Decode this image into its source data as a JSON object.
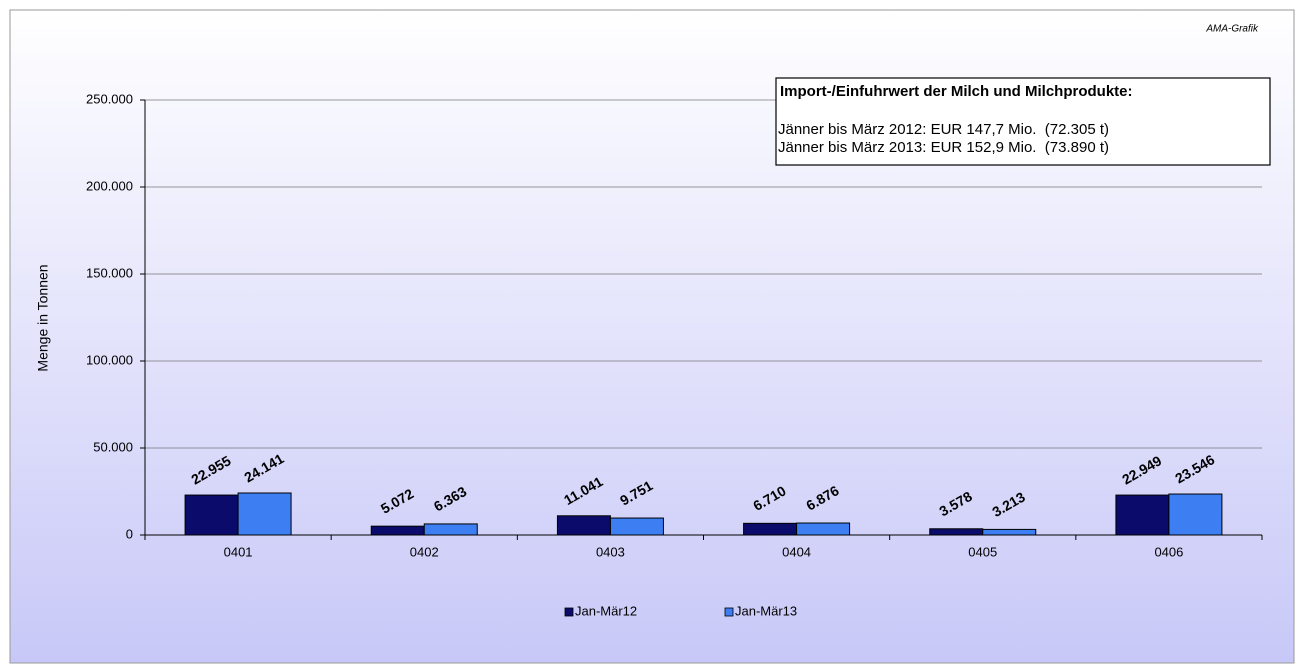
{
  "chart_data": {
    "type": "bar",
    "credit": "AMA-Grafik",
    "y_label": "Menge in Tonnen",
    "annotation": {
      "title": "Import-/Einfuhrwert der Milch und Milchprodukte:",
      "lines": [
        "Jänner bis März 2012: EUR 147,7 Mio.  (72.305 t)",
        "Jänner bis März 2013: EUR 152,9 Mio.  (73.890 t)"
      ]
    },
    "categories": [
      "0401",
      "0402",
      "0403",
      "0404",
      "0405",
      "0406"
    ],
    "series": [
      {
        "name": "Jan-Mär12",
        "color": "#0b0b6b",
        "values": [
          22955,
          5072,
          11041,
          6710,
          3578,
          22949
        ],
        "value_labels": [
          "22.955",
          "5.072",
          "11.041",
          "6.710",
          "3.578",
          "22.949"
        ]
      },
      {
        "name": "Jan-Mär13",
        "color": "#3d7ef2",
        "values": [
          24141,
          6363,
          9751,
          6876,
          3213,
          23546
        ],
        "value_labels": [
          "24.141",
          "6.363",
          "9.751",
          "6.876",
          "3.213",
          "23.546"
        ]
      }
    ],
    "ylim": [
      0,
      250000
    ],
    "yticks": [
      0,
      {
        "value": 50000,
        "label": "50.000"
      },
      {
        "value": 100000,
        "label": "100.000"
      },
      {
        "value": 150000,
        "label": "150.000"
      },
      {
        "value": 200000,
        "label": "200.000"
      },
      {
        "value": 250000,
        "label": "250.000"
      }
    ],
    "grid": true,
    "legend": "bottom"
  }
}
